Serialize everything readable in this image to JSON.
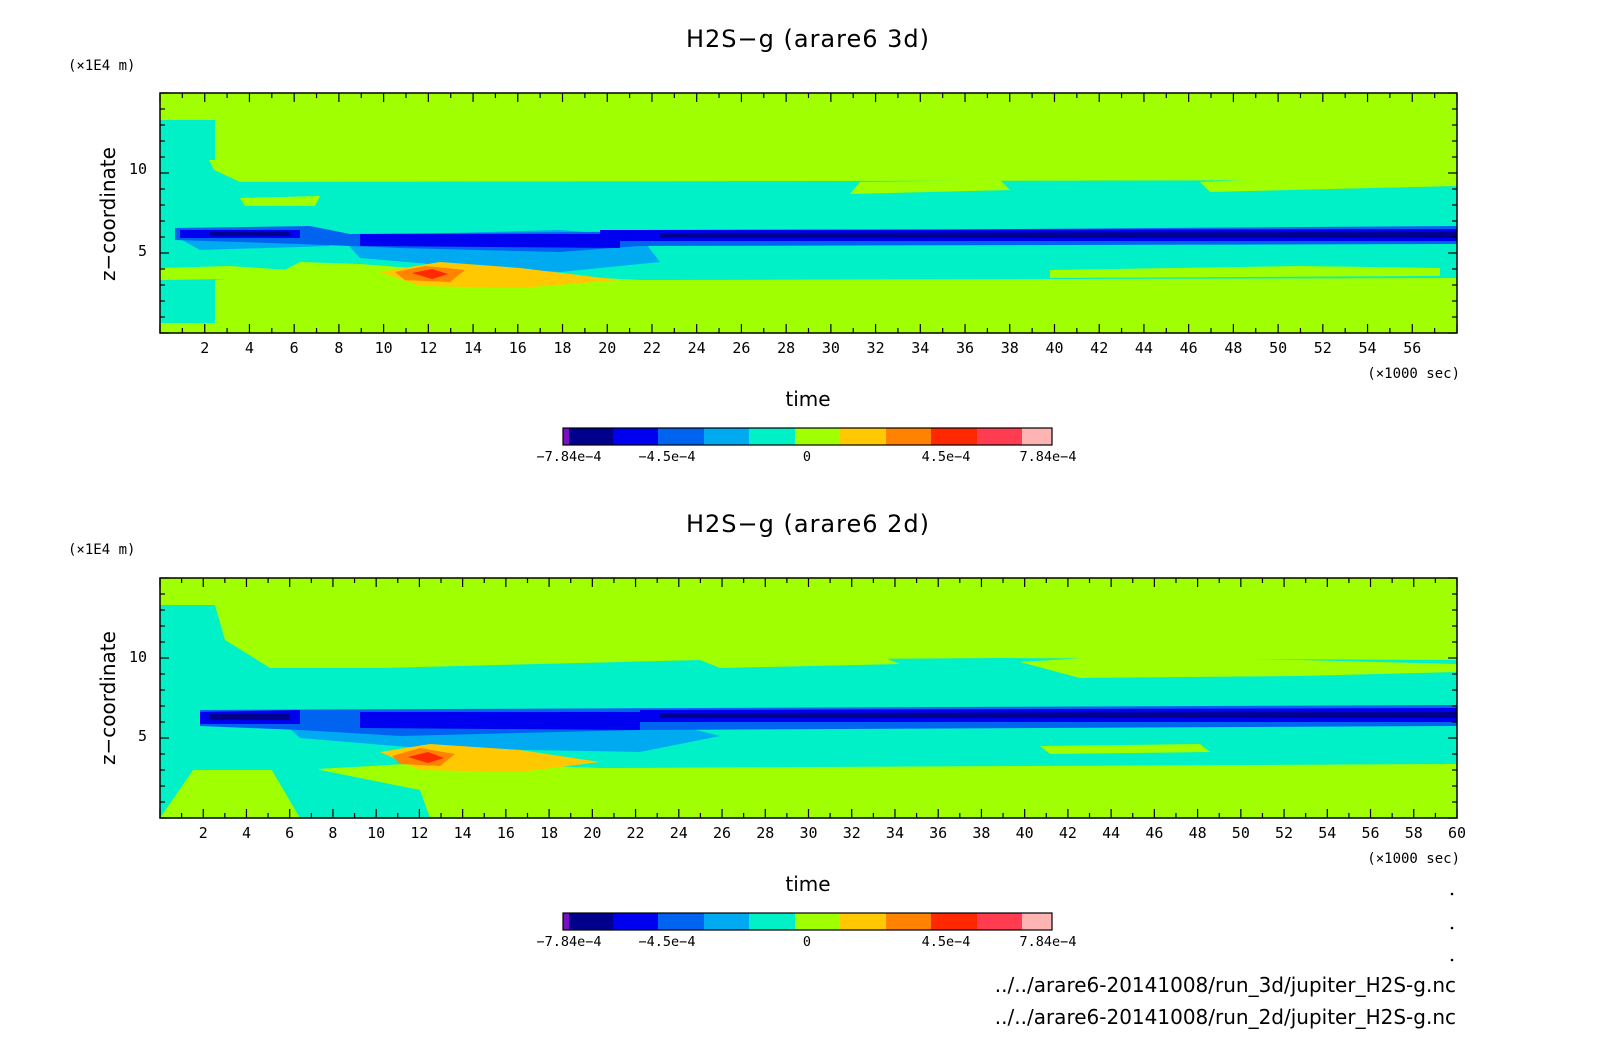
{
  "chart_data": [
    {
      "type": "heatmap",
      "title": "H2S−g (arare6 3d)",
      "xlabel": "time",
      "ylabel": "z−coordinate",
      "x_unit": "(×1000 sec)",
      "y_unit": "(×1E4 m)",
      "xlim": [
        0,
        58
      ],
      "ylim": [
        0,
        15
      ],
      "x_ticks": [
        "2",
        "4",
        "6",
        "8",
        "10",
        "12",
        "14",
        "16",
        "18",
        "20",
        "22",
        "24",
        "26",
        "28",
        "30",
        "32",
        "34",
        "36",
        "38",
        "40",
        "42",
        "44",
        "46",
        "48",
        "50",
        "52",
        "54",
        "56"
      ],
      "y_ticks": [
        "5",
        "10"
      ],
      "colorbar_labels": [
        "−7.84e−4",
        "−4.5e−4",
        "0",
        "4.5e−4",
        "7.84e−4"
      ],
      "field_summary": "background 0 to 1.1e-4; band of 0 to -1.1e-4 between z≈3.5 and z≈9; strong negative band at z≈6; positive anomaly near t≈12, z≈3.5"
    },
    {
      "type": "heatmap",
      "title": "H2S−g (arare6 2d)",
      "xlabel": "time",
      "ylabel": "z−coordinate",
      "x_unit": "(×1000 sec)",
      "y_unit": "(×1E4 m)",
      "xlim": [
        0,
        60
      ],
      "ylim": [
        0,
        15
      ],
      "x_ticks": [
        "2",
        "4",
        "6",
        "8",
        "10",
        "12",
        "14",
        "16",
        "18",
        "20",
        "22",
        "24",
        "26",
        "28",
        "30",
        "32",
        "34",
        "36",
        "38",
        "40",
        "42",
        "44",
        "46",
        "48",
        "50",
        "52",
        "54",
        "56",
        "58",
        "60"
      ],
      "y_ticks": [
        "5",
        "10"
      ],
      "colorbar_labels": [
        "−7.84e−4",
        "−4.5e−4",
        "0",
        "4.5e−4",
        "7.84e−4"
      ],
      "field_summary": "background 0 to 1.1e-4; band of 0 to -1.1e-4 between z≈3.5 and z≈10; strong negative band at z≈6; positive anomaly near t≈12, z≈3.5"
    }
  ],
  "colors": {
    "levels": [
      "#7a0fc8",
      "#00008c",
      "#0000f0",
      "#0064f0",
      "#00aaf0",
      "#00f0c8",
      "#a0ff00",
      "#ffc800",
      "#ff8200",
      "#ff2800",
      "#ff3c50",
      "#ffb4b4"
    ]
  },
  "files": [
    "../../arare6-20141008/run_3d/jupiter_H2S-g.nc",
    "../../arare6-20141008/run_2d/jupiter_H2S-g.nc"
  ]
}
